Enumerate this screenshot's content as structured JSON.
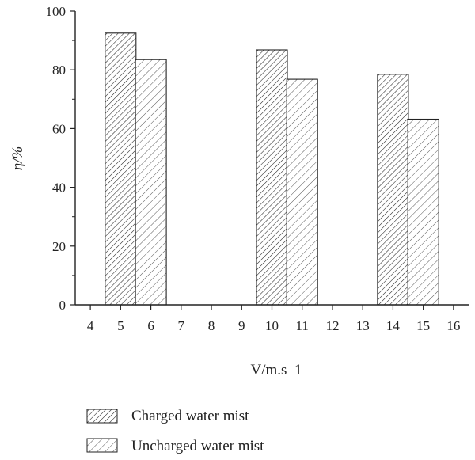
{
  "chart_data": {
    "type": "bar",
    "title": "",
    "xlabel": "V/m.s–1",
    "ylabel": "η/%",
    "xlim": [
      3.5,
      16.5
    ],
    "ylim": [
      0,
      100
    ],
    "x_ticks": [
      4,
      5,
      6,
      7,
      8,
      9,
      10,
      11,
      12,
      13,
      14,
      15,
      16
    ],
    "y_ticks": [
      0,
      20,
      40,
      60,
      80,
      100
    ],
    "grid": false,
    "legend_position": "bottom",
    "series": [
      {
        "name": "Charged water mist",
        "pattern": "hatch-dense",
        "points": [
          {
            "x": 5,
            "y": 92.5
          },
          {
            "x": 10,
            "y": 86.8
          },
          {
            "x": 14,
            "y": 78.5
          }
        ]
      },
      {
        "name": "Uncharged water mist",
        "pattern": "hatch-sparse",
        "points": [
          {
            "x": 6,
            "y": 83.5
          },
          {
            "x": 11,
            "y": 76.8
          },
          {
            "x": 15,
            "y": 63.2
          }
        ]
      }
    ]
  }
}
